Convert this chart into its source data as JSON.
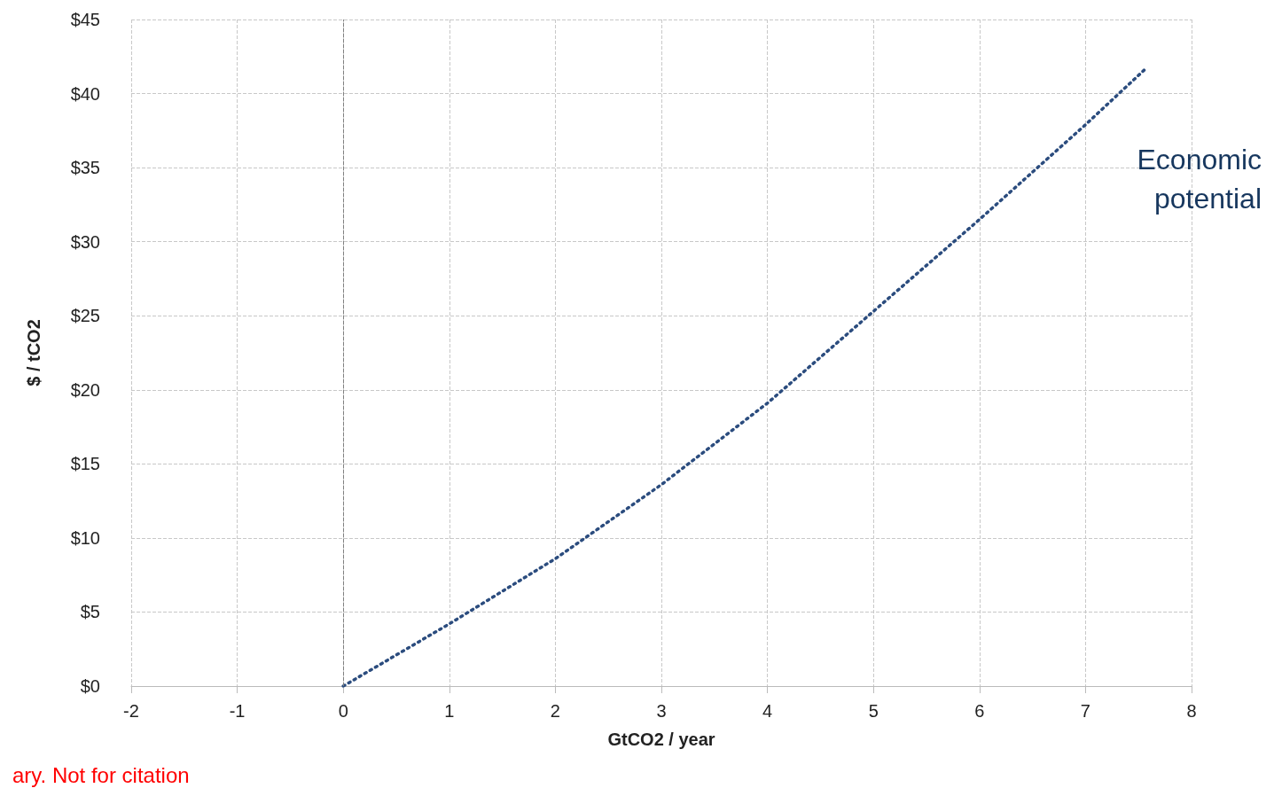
{
  "chart_data": {
    "type": "line",
    "xlabel": "GtCO2 / year",
    "ylabel": "$ / tCO2",
    "x": [
      0,
      1,
      2,
      3,
      4,
      5,
      6,
      7,
      7.57
    ],
    "series": [
      {
        "color": "#2b4c7e",
        "values": [
          0,
          4.2,
          8.6,
          13.6,
          19.1,
          25.3,
          31.5,
          37.9,
          41.7
        ]
      }
    ],
    "xlim": [
      -2,
      8
    ],
    "xticks": [
      -2,
      -1,
      0,
      1,
      2,
      3,
      4,
      5,
      6,
      7,
      8
    ],
    "ylim": [
      0,
      45
    ],
    "yticks": [
      {
        "value": 0,
        "label": "$0"
      },
      {
        "value": 5,
        "label": "$5"
      },
      {
        "value": 10,
        "label": "$10"
      },
      {
        "value": 15,
        "label": "$15"
      },
      {
        "value": 20,
        "label": "$20"
      },
      {
        "value": 25,
        "label": "$25"
      },
      {
        "value": 30,
        "label": "$30"
      },
      {
        "value": 35,
        "label": "$35"
      },
      {
        "value": 40,
        "label": "$40"
      },
      {
        "value": 45,
        "label": "$45"
      }
    ],
    "grid": true,
    "marker": "none",
    "line_style": "dotted",
    "ref_lines": [
      {
        "axis": "x",
        "value": 0,
        "color": "#808080",
        "line_style": "dashed"
      }
    ],
    "annotations": [
      "Economic\npotential",
      "ary. Not for citation"
    ]
  }
}
